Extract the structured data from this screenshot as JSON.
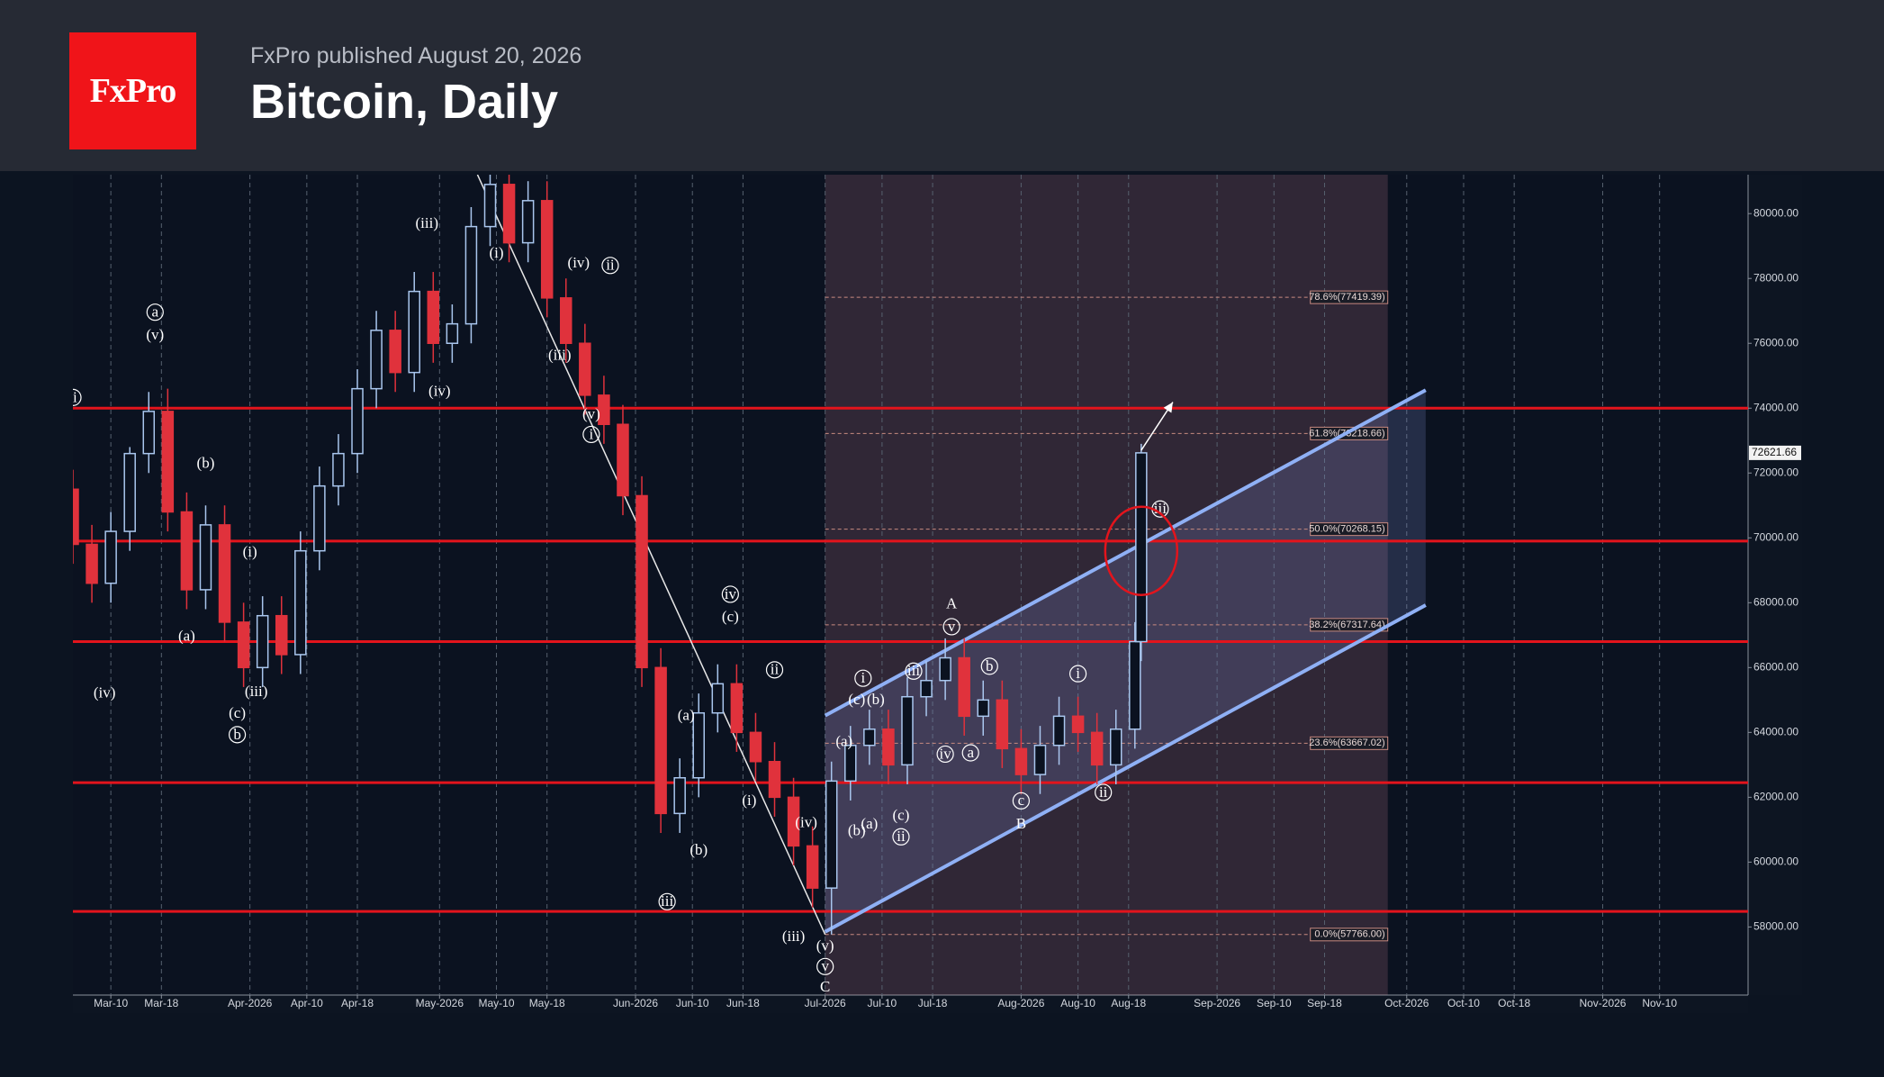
{
  "header": {
    "logo": "FxPro",
    "published": "FxPro published August 20, 2026",
    "title": "Bitcoin, Daily"
  },
  "chart_data": {
    "type": "candlestick",
    "xlim": [
      "2026-03-04",
      "2026-11-24"
    ],
    "ylim": [
      55900,
      81200
    ],
    "xticks": [
      {
        "value": "2026-03-10",
        "label": "Mar-10"
      },
      {
        "value": "2026-03-18",
        "label": "Mar-18"
      },
      {
        "value": "2026-04-01",
        "label": "Apr-2026"
      },
      {
        "value": "2026-04-10",
        "label": "Apr-10"
      },
      {
        "value": "2026-04-18",
        "label": "Apr-18"
      },
      {
        "value": "2026-05-01",
        "label": "May-2026"
      },
      {
        "value": "2026-05-10",
        "label": "May-10"
      },
      {
        "value": "2026-05-18",
        "label": "May-18"
      },
      {
        "value": "2026-06-01",
        "label": "Jun-2026"
      },
      {
        "value": "2026-06-10",
        "label": "Jun-10"
      },
      {
        "value": "2026-06-18",
        "label": "Jun-18"
      },
      {
        "value": "2026-07-01",
        "label": "Jul-2026"
      },
      {
        "value": "2026-07-10",
        "label": "Jul-10"
      },
      {
        "value": "2026-07-18",
        "label": "Jul-18"
      },
      {
        "value": "2026-08-01",
        "label": "Aug-2026"
      },
      {
        "value": "2026-08-10",
        "label": "Aug-10"
      },
      {
        "value": "2026-08-18",
        "label": "Aug-18"
      },
      {
        "value": "2026-09-01",
        "label": "Sep-2026"
      },
      {
        "value": "2026-09-10",
        "label": "Sep-10"
      },
      {
        "value": "2026-09-18",
        "label": "Sep-18"
      },
      {
        "value": "2026-10-01",
        "label": "Oct-2026"
      },
      {
        "value": "2026-10-10",
        "label": "Oct-10"
      },
      {
        "value": "2026-10-18",
        "label": "Oct-18"
      },
      {
        "value": "2026-11-01",
        "label": "Nov-2026"
      },
      {
        "value": "2026-11-10",
        "label": "Nov-10"
      }
    ],
    "yticks": [
      {
        "value": 58000,
        "label": "58000.00"
      },
      {
        "value": 60000,
        "label": "60000.00"
      },
      {
        "value": 62000,
        "label": "62000.00"
      },
      {
        "value": 64000,
        "label": "64000.00"
      },
      {
        "value": 66000,
        "label": "66000.00"
      },
      {
        "value": 68000,
        "label": "68000.00"
      },
      {
        "value": 70000,
        "label": "70000.00"
      },
      {
        "value": 72000,
        "label": "72000.00"
      },
      {
        "value": 74000,
        "label": "74000.00"
      },
      {
        "value": 76000,
        "label": "76000.00"
      },
      {
        "value": 78000,
        "label": "78000.00"
      },
      {
        "value": 80000,
        "label": "80000.00"
      }
    ],
    "grid": true,
    "up_color": "#a9c6ee",
    "down_color": "#e0323c",
    "candles": {
      "x": [
        "2026-03-04",
        "2026-03-07",
        "2026-03-10",
        "2026-03-13",
        "2026-03-16",
        "2026-03-19",
        "2026-03-22",
        "2026-03-25",
        "2026-03-28",
        "2026-03-31",
        "2026-04-03",
        "2026-04-06",
        "2026-04-09",
        "2026-04-12",
        "2026-04-15",
        "2026-04-18",
        "2026-04-21",
        "2026-04-24",
        "2026-04-27",
        "2026-04-30",
        "2026-05-03",
        "2026-05-06",
        "2026-05-09",
        "2026-05-12",
        "2026-05-15",
        "2026-05-18",
        "2026-05-21",
        "2026-05-24",
        "2026-05-27",
        "2026-05-30",
        "2026-06-02",
        "2026-06-05",
        "2026-06-08",
        "2026-06-11",
        "2026-06-14",
        "2026-06-17",
        "2026-06-20",
        "2026-06-23",
        "2026-06-26",
        "2026-06-29",
        "2026-07-02",
        "2026-07-05",
        "2026-07-08",
        "2026-07-11",
        "2026-07-14",
        "2026-07-17",
        "2026-07-20",
        "2026-07-23",
        "2026-07-26",
        "2026-07-29",
        "2026-08-01",
        "2026-08-04",
        "2026-08-07",
        "2026-08-10",
        "2026-08-13",
        "2026-08-16",
        "2026-08-19",
        "2026-08-20"
      ],
      "open": [
        71500,
        69800,
        68600,
        70200,
        72600,
        73900,
        70800,
        68400,
        70400,
        67400,
        66000,
        67600,
        66400,
        69600,
        71600,
        72600,
        74600,
        76400,
        75100,
        77600,
        76000,
        76600,
        79600,
        80900,
        79100,
        80400,
        77400,
        76000,
        74400,
        73500,
        71300,
        66000,
        61500,
        62600,
        64600,
        65500,
        64000,
        63100,
        62000,
        60500,
        59200,
        62500,
        63600,
        64100,
        63000,
        65100,
        65600,
        66300,
        64500,
        65000,
        63500,
        62700,
        63600,
        64500,
        64000,
        63000,
        64100,
        66800
      ],
      "high": [
        72100,
        70400,
        70800,
        72800,
        74500,
        74600,
        71400,
        71000,
        71000,
        68000,
        68200,
        68200,
        70200,
        72200,
        73200,
        75200,
        77000,
        77000,
        78200,
        78200,
        77200,
        80200,
        81200,
        81200,
        81000,
        81000,
        78000,
        76600,
        75000,
        74100,
        71900,
        66600,
        63200,
        65200,
        66100,
        66100,
        64600,
        63700,
        62600,
        61100,
        63100,
        64200,
        64700,
        64700,
        65700,
        66200,
        66900,
        66900,
        65600,
        65600,
        64100,
        64200,
        65100,
        65100,
        64600,
        64700,
        67400,
        72900
      ],
      "low": [
        69200,
        68000,
        68000,
        69600,
        72000,
        70200,
        67800,
        67800,
        66800,
        65400,
        65400,
        65800,
        65800,
        69000,
        71000,
        72000,
        74000,
        74500,
        74500,
        75400,
        75400,
        76000,
        79000,
        78500,
        78500,
        76800,
        75400,
        73800,
        72900,
        70700,
        65400,
        60900,
        60900,
        62000,
        64000,
        63400,
        62500,
        61400,
        59900,
        58600,
        57766,
        61900,
        63000,
        62400,
        62400,
        64500,
        65000,
        63900,
        63900,
        62900,
        62100,
        62100,
        63000,
        63400,
        62400,
        62400,
        63500,
        66200
      ],
      "close": [
        69800,
        68600,
        70200,
        72600,
        73900,
        70800,
        68400,
        70400,
        67400,
        66000,
        67600,
        66400,
        69600,
        71600,
        72600,
        74600,
        76400,
        75100,
        77600,
        76000,
        76600,
        79600,
        80900,
        79100,
        80400,
        77400,
        76000,
        74400,
        73500,
        71300,
        66000,
        61500,
        62600,
        64600,
        65500,
        64000,
        63100,
        62000,
        60500,
        59200,
        62500,
        63600,
        64100,
        63000,
        65100,
        65600,
        66300,
        64500,
        65000,
        63500,
        62700,
        63600,
        64500,
        64000,
        63000,
        64100,
        66800,
        72621.66
      ]
    },
    "last_price": 72621.66,
    "levels": [
      74000,
      69900,
      66800,
      62450,
      58480
    ],
    "level_color": "#e3141c",
    "zone": [
      "2026-07-01",
      "2026-09-28"
    ],
    "fib": [
      {
        "value": 77419.39,
        "label": "78.6%(77419.39)"
      },
      {
        "value": 73218.66,
        "label": "61.8%(73218.66)"
      },
      {
        "value": 70268.15,
        "label": "50.0%(70268.15)"
      },
      {
        "value": 67317.64,
        "label": "38.2%(67317.64)"
      },
      {
        "value": 63667.02,
        "label": "23.6%(63667.02)"
      },
      {
        "value": 57766,
        "label": "0.0%(57766.00)"
      }
    ],
    "channel": {
      "color": "#8fb0f5",
      "upper": {
        "x": [
          "2026-07-01",
          "2026-10-04"
        ],
        "y": [
          64519,
          74556
        ]
      },
      "lower": {
        "x": [
          "2026-07-01",
          "2026-10-04"
        ],
        "y": [
          57852,
          67926
        ]
      }
    },
    "trendline": {
      "x": [
        "2026-05-07",
        "2026-07-01"
      ],
      "y": [
        81200,
        57766
      ]
    },
    "highlight": {
      "x": "2026-08-20",
      "y": 69600
    },
    "arrow": {
      "x": [
        "2026-08-20",
        "2026-08-25"
      ],
      "y": [
        72700,
        74185
      ]
    },
    "waves": [
      {
        "text": "ii",
        "circled": true,
        "x": "2026-03-04",
        "y": 74330
      },
      {
        "text": "a",
        "circled": true,
        "x": "2026-03-17",
        "y": 76960
      },
      {
        "text": "(v)",
        "circled": false,
        "x": "2026-03-17",
        "y": 76260
      },
      {
        "text": "(b)",
        "circled": false,
        "x": "2026-03-25",
        "y": 72300
      },
      {
        "text": "(a)",
        "circled": false,
        "x": "2026-03-22",
        "y": 66960
      },
      {
        "text": "(iv)",
        "circled": false,
        "x": "2026-03-09",
        "y": 65220
      },
      {
        "text": "(i)",
        "circled": false,
        "x": "2026-04-01",
        "y": 69560
      },
      {
        "text": "(iii)",
        "circled": false,
        "x": "2026-04-02",
        "y": 65260
      },
      {
        "text": "(c)",
        "circled": false,
        "x": "2026-03-30",
        "y": 64590
      },
      {
        "text": "b",
        "circled": true,
        "x": "2026-03-30",
        "y": 63930
      },
      {
        "text": "(iii)",
        "circled": false,
        "x": "2026-04-29",
        "y": 79700
      },
      {
        "text": "(iv)",
        "circled": false,
        "x": "2026-05-01",
        "y": 74520
      },
      {
        "text": "(i)",
        "circled": false,
        "x": "2026-05-10",
        "y": 78780
      },
      {
        "text": "(iv)",
        "circled": false,
        "x": "2026-05-23",
        "y": 78480
      },
      {
        "text": "ii",
        "circled": true,
        "x": "2026-05-28",
        "y": 78400
      },
      {
        "text": "(iii)",
        "circled": false,
        "x": "2026-05-20",
        "y": 75630
      },
      {
        "text": "(v)",
        "circled": false,
        "x": "2026-05-25",
        "y": 73810
      },
      {
        "text": "i",
        "circled": true,
        "x": "2026-05-25",
        "y": 73190
      },
      {
        "text": "iii",
        "circled": true,
        "x": "2026-06-06",
        "y": 58780
      },
      {
        "text": "(a)",
        "circled": false,
        "x": "2026-06-09",
        "y": 64520
      },
      {
        "text": "(b)",
        "circled": false,
        "x": "2026-06-11",
        "y": 60370
      },
      {
        "text": "iv",
        "circled": true,
        "x": "2026-06-16",
        "y": 68260
      },
      {
        "text": "(c)",
        "circled": false,
        "x": "2026-06-16",
        "y": 67560
      },
      {
        "text": "ii",
        "circled": true,
        "x": "2026-06-23",
        "y": 65930
      },
      {
        "text": "(i)",
        "circled": false,
        "x": "2026-06-19",
        "y": 61890
      },
      {
        "text": "(iv)",
        "circled": false,
        "x": "2026-06-28",
        "y": 61220
      },
      {
        "text": "(iii)",
        "circled": false,
        "x": "2026-06-26",
        "y": 57700
      },
      {
        "text": "(v)",
        "circled": false,
        "x": "2026-07-01",
        "y": 57410
      },
      {
        "text": "v",
        "circled": true,
        "x": "2026-07-01",
        "y": 56780
      },
      {
        "text": "C",
        "circled": false,
        "x": "2026-07-01",
        "y": 56150
      },
      {
        "text": "i",
        "circled": true,
        "x": "2026-07-07",
        "y": 65670
      },
      {
        "text": "(c)",
        "circled": false,
        "x": "2026-07-06",
        "y": 65000
      },
      {
        "text": "(b)",
        "circled": false,
        "x": "2026-07-09",
        "y": 65000
      },
      {
        "text": "(a)",
        "circled": false,
        "x": "2026-07-04",
        "y": 63720
      },
      {
        "text": "(b)",
        "circled": false,
        "x": "2026-07-06",
        "y": 60960
      },
      {
        "text": "(a)",
        "circled": false,
        "x": "2026-07-08",
        "y": 61180
      },
      {
        "text": "(c)",
        "circled": false,
        "x": "2026-07-13",
        "y": 61440
      },
      {
        "text": "ii",
        "circled": true,
        "x": "2026-07-13",
        "y": 60780
      },
      {
        "text": "iii",
        "circled": true,
        "x": "2026-07-15",
        "y": 65890
      },
      {
        "text": "iv",
        "circled": true,
        "x": "2026-07-20",
        "y": 63330
      },
      {
        "text": "a",
        "circled": true,
        "x": "2026-07-24",
        "y": 63370
      },
      {
        "text": "b",
        "circled": true,
        "x": "2026-07-27",
        "y": 66040
      },
      {
        "text": "A",
        "circled": false,
        "x": "2026-07-21",
        "y": 67960
      },
      {
        "text": "v",
        "circled": true,
        "x": "2026-07-21",
        "y": 67260
      },
      {
        "text": "c",
        "circled": true,
        "x": "2026-08-01",
        "y": 61890
      },
      {
        "text": "B",
        "circled": false,
        "x": "2026-08-01",
        "y": 61180
      },
      {
        "text": "i",
        "circled": true,
        "x": "2026-08-10",
        "y": 65810
      },
      {
        "text": "ii",
        "circled": true,
        "x": "2026-08-14",
        "y": 62150
      },
      {
        "text": "iii",
        "circled": true,
        "x": "2026-08-23",
        "y": 70890
      }
    ]
  }
}
